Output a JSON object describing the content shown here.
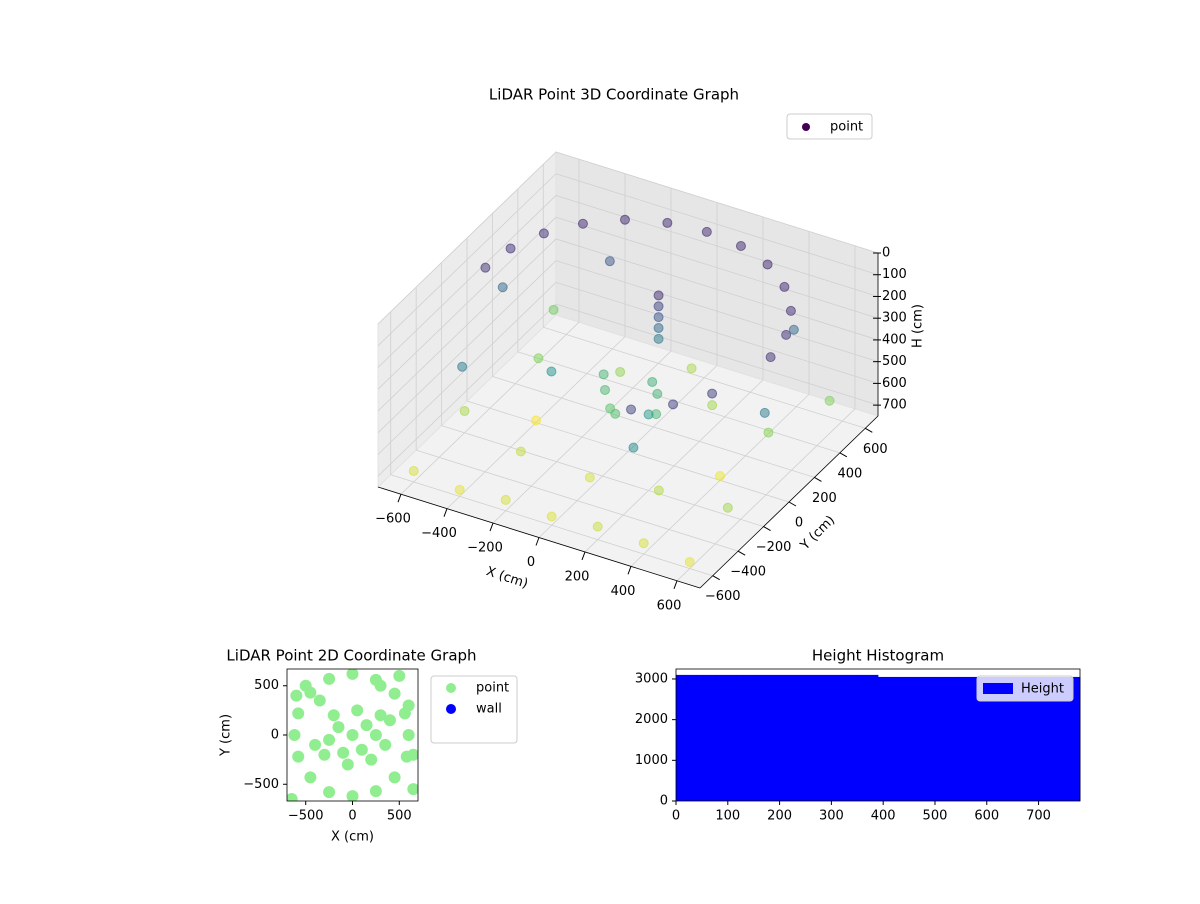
{
  "chart_data": [
    {
      "type": "scatter3d",
      "title": "LiDAR Point 3D Coordinate Graph",
      "x_label": "X (cm)",
      "y_label": "Y (cm)",
      "z_label": "H (cm)",
      "xlim": [
        -700,
        700
      ],
      "ylim": [
        -700,
        700
      ],
      "zlim": [
        0,
        750
      ],
      "z_inverted": true,
      "colormap": "viridis",
      "grid": true,
      "legend": "upper right",
      "xticks": [
        {
          "value": -600,
          "label": "−600"
        },
        {
          "value": -400,
          "label": "−400"
        },
        {
          "value": -200,
          "label": "−200"
        },
        0,
        200,
        400,
        600
      ],
      "yticks": [
        {
          "value": -600,
          "label": "−600"
        },
        {
          "value": -400,
          "label": "−400"
        },
        {
          "value": -200,
          "label": "−200"
        },
        0,
        200,
        400,
        600
      ],
      "zticks": [
        0,
        100,
        200,
        300,
        400,
        500,
        600,
        700
      ],
      "series": [
        {
          "name": "point",
          "color": "#440154",
          "x": [
            310,
            537,
            620,
            537,
            310,
            0,
            -310,
            -537,
            -620,
            438,
            599,
            438,
            160,
            -160,
            -438,
            -599,
            -100,
            100,
            0,
            50,
            -50,
            150,
            -150,
            50,
            50,
            50,
            50,
            50,
            -600,
            -400,
            -200,
            0,
            200,
            400,
            600,
            -600,
            -300,
            0,
            300,
            600,
            -500,
            -200,
            200,
            500,
            -600,
            600,
            0,
            -400,
            400,
            -500,
            500,
            -300,
            300,
            -600,
            650,
            200,
            -250
          ],
          "y": [
            -537,
            -310,
            0,
            310,
            537,
            620,
            537,
            310,
            0,
            -438,
            160,
            438,
            599,
            599,
            438,
            160,
            0,
            50,
            -100,
            100,
            -50,
            -50,
            80,
            150,
            150,
            150,
            150,
            150,
            -600,
            -600,
            -600,
            -600,
            -600,
            -600,
            -600,
            -200,
            -300,
            -300,
            -300,
            -300,
            200,
            300,
            300,
            200,
            500,
            500,
            500,
            0,
            0,
            -400,
            400,
            400,
            -500,
            100,
            -100,
            -200,
            -150
          ],
          "h": [
            150,
            130,
            110,
            100,
            90,
            90,
            90,
            100,
            110,
            140,
            105,
            95,
            90,
            90,
            95,
            105,
            500,
            480,
            520,
            470,
            540,
            500,
            490,
            100,
            150,
            200,
            250,
            300,
            700,
            720,
            700,
            710,
            690,
            700,
            720,
            650,
            680,
            700,
            660,
            640,
            600,
            620,
            640,
            610,
            580,
            600,
            650,
            740,
            730,
            300,
            250,
            200,
            350,
            250,
            300,
            400,
            380
          ]
        }
      ]
    },
    {
      "type": "scatter",
      "title": "LiDAR Point 2D Coordinate Graph",
      "x_label": "X (cm)",
      "y_label": "Y (cm)",
      "xlim": [
        -700,
        700
      ],
      "ylim": [
        -670,
        670
      ],
      "legend": "outside right",
      "xticks": [
        {
          "value": -500,
          "label": "−500"
        },
        0,
        500
      ],
      "yticks": [
        {
          "value": -500,
          "label": "−500"
        },
        0,
        500
      ],
      "series": [
        {
          "name": "point",
          "color": "#90ee90",
          "x": [
            600,
            560,
            450,
            250,
            0,
            -250,
            -450,
            -580,
            -620,
            -580,
            -450,
            -250,
            0,
            250,
            450,
            580,
            0,
            150,
            -150,
            100,
            -100,
            250,
            -250,
            50,
            300,
            -200,
            200,
            350,
            -50,
            400,
            -300,
            -500,
            500,
            650,
            -650,
            -400,
            300,
            -350,
            600,
            -600,
            650
          ],
          "y": [
            0,
            220,
            420,
            560,
            620,
            570,
            430,
            220,
            0,
            -220,
            -430,
            -580,
            -620,
            -570,
            -430,
            -220,
            0,
            100,
            80,
            -150,
            -180,
            0,
            -50,
            250,
            200,
            200,
            -250,
            -100,
            -300,
            150,
            -200,
            500,
            600,
            -550,
            -650,
            -100,
            500,
            350,
            300,
            400,
            -200
          ]
        },
        {
          "name": "wall",
          "color": "#0000ff",
          "x": [],
          "y": []
        }
      ]
    },
    {
      "type": "histogram",
      "title": "Height Histogram",
      "legend": "upper right",
      "bins": [
        0,
        39,
        78,
        117,
        156,
        195,
        234,
        273,
        312,
        351,
        390,
        429,
        468,
        507,
        546,
        585,
        624,
        663,
        702,
        741,
        780
      ],
      "xlim": [
        0,
        780
      ],
      "ylim": [
        0,
        3245
      ],
      "xticks": [
        0,
        100,
        200,
        300,
        400,
        500,
        600,
        700
      ],
      "yticks": [
        0,
        1000,
        2000,
        3000
      ],
      "series": [
        {
          "name": "Height",
          "color": "#0000ff",
          "values": [
            3100,
            3100,
            3100,
            3100,
            3100,
            3100,
            3100,
            3100,
            3100,
            3100,
            3050,
            3050,
            3050,
            3050,
            3050,
            3050,
            3050,
            3050,
            3050,
            3050
          ]
        }
      ]
    }
  ]
}
